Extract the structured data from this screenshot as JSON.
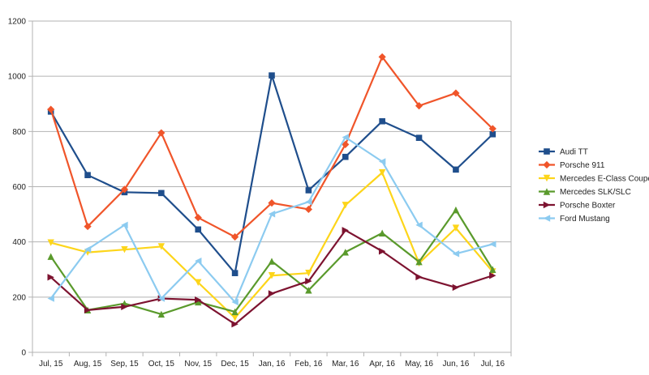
{
  "chart_data": {
    "type": "line",
    "title": "",
    "xlabel": "",
    "ylabel": "",
    "ylim": [
      0,
      1200
    ],
    "ytick_step": 200,
    "grid": true,
    "legend_position": "right",
    "categories": [
      "Jul, 15",
      "Aug, 15",
      "Sep, 15",
      "Oct, 15",
      "Nov, 15",
      "Dec, 15",
      "Jan, 16",
      "Feb, 16",
      "Mar, 16",
      "Apr, 16",
      "May, 16",
      "Jun, 16",
      "Jul, 16"
    ],
    "series": [
      {
        "name": "Audi TT",
        "color": "#1f4e8c",
        "marker": "square",
        "values": [
          872,
          642,
          580,
          577,
          445,
          287,
          1003,
          587,
          708,
          837,
          777,
          662,
          790
        ]
      },
      {
        "name": "Porsche 911",
        "color": "#f0552a",
        "marker": "diamond",
        "values": [
          880,
          456,
          590,
          795,
          488,
          418,
          541,
          518,
          753,
          1070,
          893,
          939,
          810
        ]
      },
      {
        "name": "Mercedes E-Class Coupé",
        "color": "#fdd51a",
        "marker": "triangle-down",
        "values": [
          397,
          362,
          372,
          383,
          253,
          125,
          278,
          287,
          533,
          651,
          323,
          450,
          292
        ]
      },
      {
        "name": "Mercedes SLK/SLC",
        "color": "#5a9a2c",
        "marker": "triangle-up",
        "values": [
          347,
          153,
          177,
          138,
          182,
          147,
          330,
          225,
          363,
          432,
          328,
          516,
          300
        ]
      },
      {
        "name": "Porsche Boxter",
        "color": "#7d1330",
        "marker": "triangle-right",
        "values": [
          272,
          153,
          165,
          195,
          190,
          102,
          213,
          258,
          442,
          366,
          273,
          235,
          278
        ]
      },
      {
        "name": "Ford Mustang",
        "color": "#8ccbf0",
        "marker": "triangle-left",
        "values": [
          195,
          373,
          461,
          195,
          331,
          182,
          501,
          545,
          779,
          691,
          461,
          357,
          392
        ]
      }
    ]
  }
}
